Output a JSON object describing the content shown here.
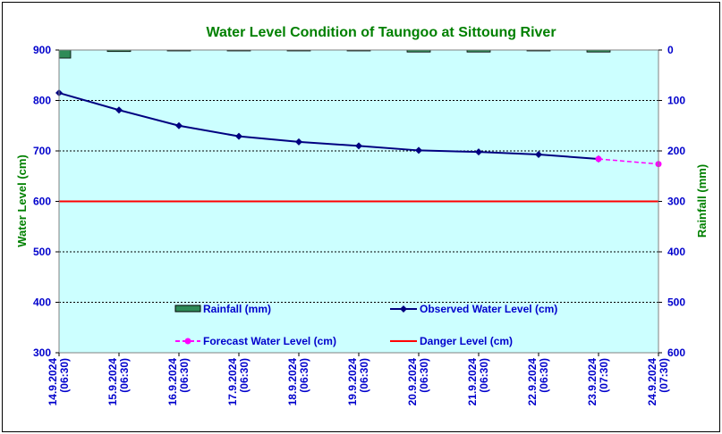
{
  "chart_data": {
    "type": "line",
    "title": "Water Level Condition of Taungoo at  Sittoung River",
    "ylabel": "Water Level (cm)",
    "y2label": "Rainfall (mm)",
    "ylim": [
      300,
      900
    ],
    "y2lim": [
      0,
      600
    ],
    "y2_inverted": true,
    "yticks": [
      "900",
      "800",
      "700",
      "600",
      "500",
      "400",
      "300"
    ],
    "y2ticks": [
      "0",
      "100",
      "200",
      "300",
      "400",
      "500",
      "600"
    ],
    "categories": [
      [
        "14.9.2024",
        "(06:30)"
      ],
      [
        "15.9.2024",
        "(06:30)"
      ],
      [
        "16.9.2024",
        "(06:30)"
      ],
      [
        "17.9.2024",
        "(06:30)"
      ],
      [
        "18.9.2024",
        "(06:30)"
      ],
      [
        "19.9.2024",
        "(06:30)"
      ],
      [
        "20.9.2024",
        "(06:30)"
      ],
      [
        "21.9.2024",
        "(06:30)"
      ],
      [
        "22.9.2024",
        "(06:30)"
      ],
      [
        "23.9.2024",
        "(07:30)"
      ],
      [
        "24.9.2024",
        "(07:30)"
      ]
    ],
    "series": [
      {
        "name": "Rainfall (mm)",
        "type": "bar",
        "axis": "y2",
        "color": "#2e8b57",
        "values": [
          16,
          3,
          0,
          0,
          1,
          1,
          4,
          4,
          1,
          4,
          null
        ]
      },
      {
        "name": "Observed Water Level (cm)",
        "type": "line",
        "color": "#000080",
        "values": [
          815,
          781,
          750,
          729,
          718,
          710,
          701,
          698,
          693,
          684,
          null
        ]
      },
      {
        "name": "Forecast Water Level (cm)",
        "type": "line",
        "dashed": true,
        "color": "#ff00ff",
        "values": [
          null,
          null,
          null,
          null,
          null,
          null,
          null,
          null,
          null,
          684,
          674
        ]
      },
      {
        "name": "Danger Level (cm)",
        "type": "hline",
        "color": "#ff0000",
        "value": 600
      }
    ],
    "grid": true,
    "legend_position": "inside-bottom"
  }
}
